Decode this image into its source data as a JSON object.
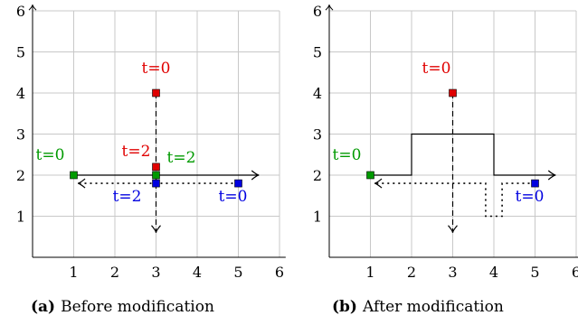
{
  "colors": {
    "red": "#e00000",
    "green": "#009a00",
    "blue": "#0000e0",
    "grid": "#c8c8c8",
    "axis": "#000000"
  },
  "panels": [
    {
      "tag": "(a)",
      "caption": "Before modification",
      "x_ticks": [
        "1",
        "2",
        "3",
        "4",
        "5",
        "6"
      ],
      "y_ticks": [
        "1",
        "2",
        "3",
        "4",
        "5",
        "6"
      ],
      "agents": [
        {
          "color": "red",
          "start": [
            3,
            4
          ],
          "start_label": "t=0",
          "end": [
            3,
            2.2
          ],
          "end_label": "t=2",
          "path": [
            [
              3,
              4
            ],
            [
              3,
              0.6
            ]
          ],
          "style": "dashed"
        },
        {
          "color": "green",
          "start": [
            1,
            2
          ],
          "start_label": "t=0",
          "end": [
            3,
            2
          ],
          "end_label": "t=2",
          "path": [
            [
              1,
              2
            ],
            [
              5.5,
              2
            ]
          ],
          "style": "solid"
        },
        {
          "color": "blue",
          "start": [
            5,
            1.8
          ],
          "start_label": "t=0",
          "end": [
            3,
            1.8
          ],
          "end_label": "t=2",
          "path": [
            [
              5,
              1.8
            ],
            [
              1.1,
              1.8
            ]
          ],
          "style": "dotted"
        }
      ]
    },
    {
      "tag": "(b)",
      "caption": "After modification",
      "x_ticks": [
        "1",
        "2",
        "3",
        "4",
        "5",
        "6"
      ],
      "y_ticks": [
        "1",
        "2",
        "3",
        "4",
        "5",
        "6"
      ],
      "agents": [
        {
          "color": "red",
          "start": [
            3,
            4
          ],
          "start_label": "t=0",
          "path": [
            [
              3,
              4
            ],
            [
              3,
              0.6
            ]
          ],
          "style": "dashed"
        },
        {
          "color": "green",
          "start": [
            1,
            2
          ],
          "start_label": "t=0",
          "path": [
            [
              1,
              2
            ],
            [
              2,
              2
            ],
            [
              2,
              3
            ],
            [
              4,
              3
            ],
            [
              4,
              2
            ],
            [
              5.5,
              2
            ]
          ],
          "style": "solid"
        },
        {
          "color": "blue",
          "start": [
            5,
            1.8
          ],
          "start_label": "t=0",
          "path": [
            [
              5,
              1.8
            ],
            [
              4.2,
              1.8
            ],
            [
              4.2,
              1
            ],
            [
              3.8,
              1
            ],
            [
              3.8,
              1.8
            ],
            [
              1.1,
              1.8
            ]
          ],
          "style": "dotted"
        }
      ]
    }
  ]
}
